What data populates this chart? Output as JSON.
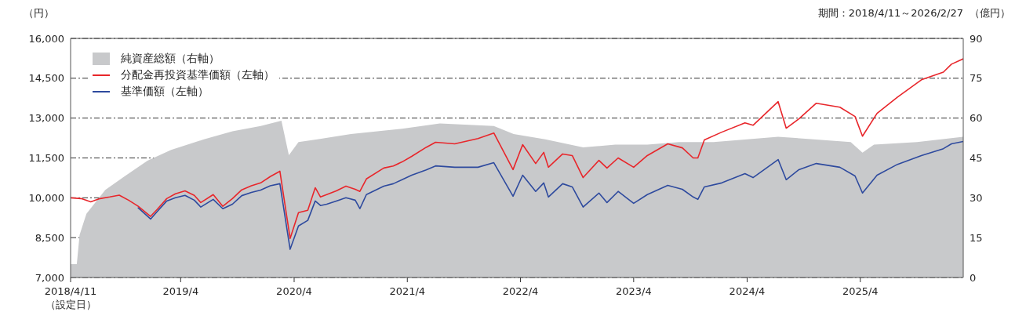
{
  "chart_data": {
    "type": "line",
    "ylabel": "（円）",
    "y2label": "（億円）",
    "annotations": [
      "期間：2018/4/11～2026/2/27"
    ],
    "x": [
      "2018-04-11",
      "2018-05-15",
      "2018-06-15",
      "2018-07-15",
      "2018-08-15",
      "2018-09-15",
      "2018-10-15",
      "2018-11-15",
      "2018-12-25",
      "2019-01-15",
      "2019-02-15",
      "2019-03-15",
      "2019-04-15",
      "2019-05-15",
      "2019-06-05",
      "2019-07-15",
      "2019-08-15",
      "2019-09-15",
      "2019-10-15",
      "2019-11-15",
      "2019-12-15",
      "2020-01-15",
      "2020-02-15",
      "2020-03-19",
      "2020-04-15",
      "2020-05-15",
      "2020-06-08",
      "2020-06-25",
      "2020-07-15",
      "2020-08-15",
      "2020-09-15",
      "2020-10-15",
      "2020-10-30",
      "2020-11-20",
      "2021-01-15",
      "2021-02-15",
      "2021-03-15",
      "2021-04-15",
      "2021-06-01",
      "2021-07-01",
      "2021-09-01",
      "2021-11-15",
      "2022-01-05",
      "2022-03-08",
      "2022-04-08",
      "2022-05-20",
      "2022-06-15",
      "2022-06-30",
      "2022-08-15",
      "2022-09-15",
      "2022-10-20",
      "2022-12-10",
      "2023-01-05",
      "2023-02-10",
      "2023-04-01",
      "2023-05-15",
      "2023-07-20",
      "2023-09-05",
      "2023-10-10",
      "2023-10-25",
      "2023-11-15",
      "2024-01-10",
      "2024-03-25",
      "2024-04-20",
      "2024-07-10",
      "2024-08-05",
      "2024-09-15",
      "2024-11-10",
      "2025-01-25",
      "2025-03-15",
      "2025-04-08",
      "2025-05-25",
      "2025-07-30",
      "2025-10-15",
      "2025-12-25",
      "2026-01-20",
      "2026-02-27"
    ],
    "series": [
      {
        "name": "純資産総額（右軸）",
        "type": "area",
        "axis": "y2",
        "color": "#c8c9cb",
        "x": [
          "2018-04-11",
          "2018-05-01",
          "2018-05-10",
          "2018-06-01",
          "2018-08-01",
          "2018-10-01",
          "2018-12-15",
          "2019-03-01",
          "2019-06-15",
          "2019-09-15",
          "2019-12-15",
          "2020-02-20",
          "2020-03-15",
          "2020-04-15",
          "2020-06-15",
          "2020-10-01",
          "2021-03-15",
          "2021-07-15",
          "2022-01-05",
          "2022-03-10",
          "2022-06-20",
          "2022-10-20",
          "2023-02-01",
          "2023-05-15",
          "2023-08-25",
          "2023-12-15",
          "2024-04-01",
          "2024-07-10",
          "2024-11-01",
          "2025-03-01",
          "2025-04-08",
          "2025-05-15",
          "2025-10-01",
          "2026-02-27"
        ],
        "values": [
          5,
          5,
          16,
          24,
          33,
          38,
          44,
          48,
          52,
          55,
          57,
          59,
          46,
          51,
          52,
          54,
          56,
          58,
          57,
          54,
          52,
          49,
          50,
          50,
          51,
          51,
          52,
          53,
          52,
          51,
          47,
          50,
          51,
          53
        ]
      },
      {
        "name": "分配金再投資基準価額（左軸）",
        "color": "#e8262b",
        "values": [
          10000,
          9970,
          9850,
          9970,
          10030,
          10100,
          9910,
          9680,
          9300,
          9560,
          9970,
          10150,
          10260,
          10090,
          9820,
          10120,
          9680,
          9970,
          10300,
          10450,
          10560,
          10800,
          11000,
          8470,
          9440,
          9530,
          10380,
          10030,
          10120,
          10260,
          10440,
          10320,
          10240,
          10710,
          11120,
          11200,
          11350,
          11560,
          11900,
          12090,
          12030,
          12230,
          12440,
          11060,
          12000,
          11290,
          11710,
          11150,
          11650,
          11590,
          10760,
          11410,
          11120,
          11500,
          11150,
          11590,
          12030,
          11880,
          11500,
          11500,
          12180,
          12470,
          12820,
          12730,
          13620,
          12620,
          12970,
          13560,
          13410,
          13060,
          12320,
          13180,
          13790,
          14440,
          14730,
          15030,
          15230
        ]
      },
      {
        "name": "基準価額（左軸）",
        "color": "#2e4a9e",
        "values": [
          null,
          null,
          null,
          null,
          null,
          null,
          null,
          9620,
          9200,
          9480,
          9880,
          10000,
          10090,
          9910,
          9650,
          9940,
          9590,
          9760,
          10080,
          10200,
          10290,
          10450,
          10530,
          8060,
          8940,
          9150,
          9880,
          9710,
          9760,
          9880,
          10000,
          9910,
          9590,
          10120,
          10440,
          10530,
          10680,
          10850,
          11050,
          11200,
          11150,
          11150,
          11320,
          10060,
          10850,
          10240,
          10560,
          10030,
          10530,
          10410,
          9650,
          10180,
          9820,
          10240,
          9790,
          10120,
          10470,
          10320,
          10030,
          9940,
          10410,
          10560,
          10910,
          10760,
          11440,
          10680,
          11060,
          11290,
          11150,
          10820,
          10180,
          10850,
          11260,
          11590,
          11850,
          12030,
          12120
        ]
      }
    ],
    "xlim": [
      "2018-04-11",
      "2026-02-27"
    ],
    "xticks": [
      {
        "value": "2018-04-11",
        "label": "2018/4/11\n（設定日）"
      },
      {
        "value": "2019-04",
        "label": "2019/4"
      },
      {
        "value": "2020-04",
        "label": "2020/4"
      },
      {
        "value": "2021-04",
        "label": "2021/4"
      },
      {
        "value": "2022-04",
        "label": "2022/4"
      },
      {
        "value": "2023-04",
        "label": "2023/4"
      },
      {
        "value": "2024-04",
        "label": "2024/4"
      },
      {
        "value": "2025-04",
        "label": "2025/4"
      }
    ],
    "ylim": [
      7000,
      16000
    ],
    "yticks": [
      {
        "value": 7000,
        "label": "7,000"
      },
      {
        "value": 8500,
        "label": "8,500"
      },
      {
        "value": 10000,
        "label": "10,000"
      },
      {
        "value": 11500,
        "label": "11,500"
      },
      {
        "value": 13000,
        "label": "13,000"
      },
      {
        "value": 14500,
        "label": "14,500"
      },
      {
        "value": 16000,
        "label": "16,000"
      }
    ],
    "y2lim": [
      0,
      90
    ],
    "y2ticks": [
      0,
      15,
      30,
      45,
      60,
      75,
      90
    ],
    "grid": "y",
    "legend": "top left"
  }
}
